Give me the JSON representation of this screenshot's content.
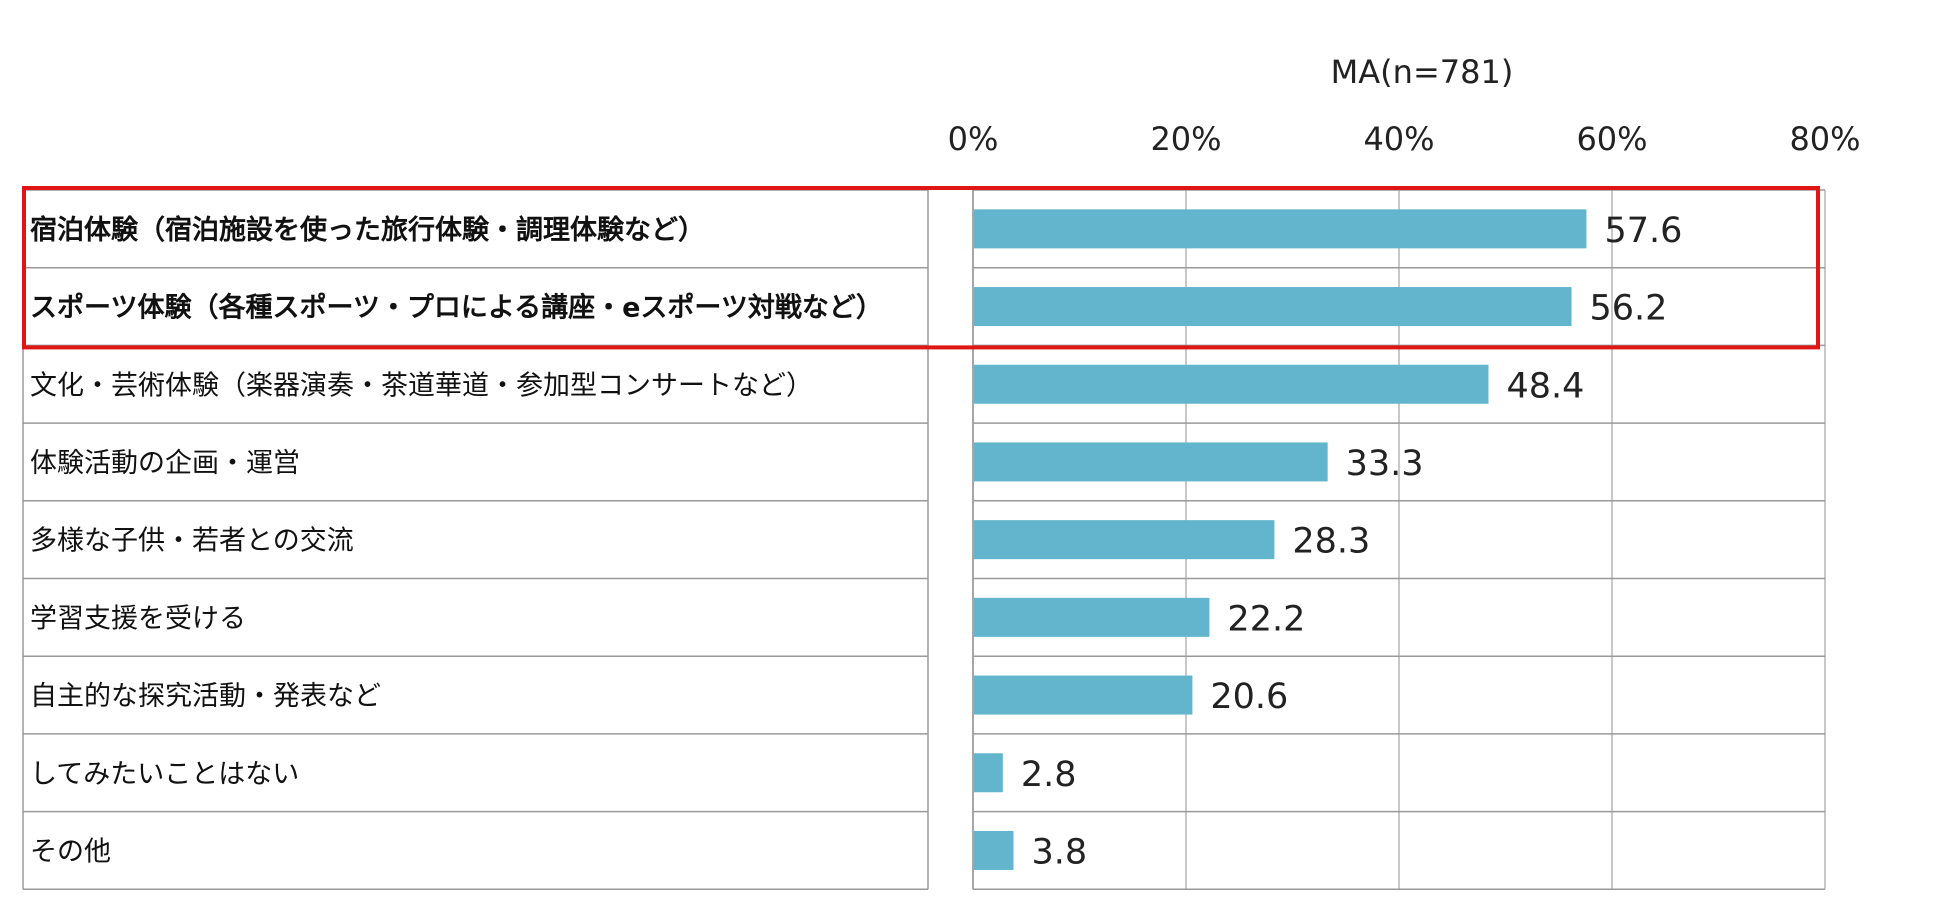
{
  "chart_data": {
    "type": "bar",
    "orientation": "horizontal",
    "note": "MA(n=781)",
    "categories": [
      "宿泊体験（宿泊施設を使った旅行体験・調理体験など）",
      "スポーツ体験（各種スポーツ・プロによる講座・eスポーツ対戦など）",
      "文化・芸術体験（楽器演奏・茶道華道・参加型コンサートなど）",
      "体験活動の企画・運営",
      "多様な子供・若者との交流",
      "学習支援を受ける",
      "自主的な探究活動・発表など",
      "してみたいことはない",
      "その他"
    ],
    "values": [
      57.6,
      56.2,
      48.4,
      33.3,
      28.3,
      22.2,
      20.6,
      2.8,
      3.8
    ],
    "value_labels": [
      "57.6",
      "56.2",
      "48.4",
      "33.3",
      "28.3",
      "22.2",
      "20.6",
      "2.8",
      "3.8"
    ],
    "xlim": [
      0,
      80
    ],
    "xticks": [
      "0%",
      "20%",
      "40%",
      "60%",
      "80%"
    ],
    "grid": true,
    "highlighted_rows": [
      0,
      1
    ],
    "colors": {
      "bar": "#62b5cc",
      "highlight": "#e01515",
      "grid": "#c8c8c8",
      "rule": "#9a9a9a"
    }
  }
}
